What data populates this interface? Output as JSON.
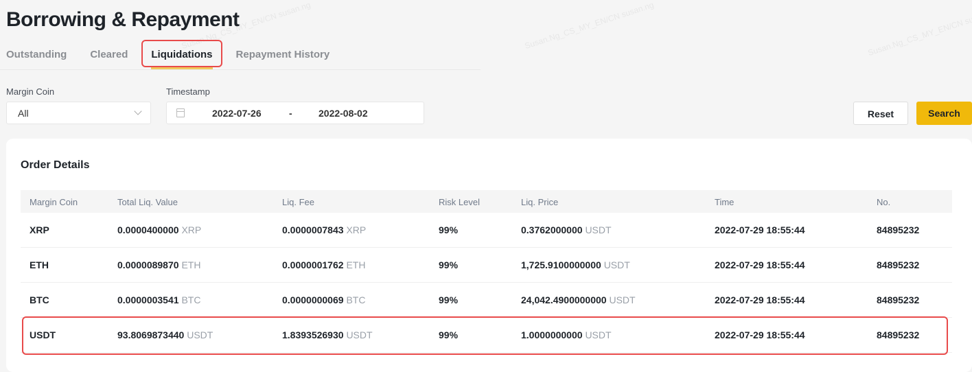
{
  "page": {
    "title": "Borrowing & Repayment"
  },
  "tabs": [
    {
      "label": "Outstanding"
    },
    {
      "label": "Cleared"
    },
    {
      "label": "Liquidations",
      "active": true
    },
    {
      "label": "Repayment History"
    }
  ],
  "filters": {
    "margin_coin_label": "Margin Coin",
    "margin_coin_value": "All",
    "timestamp_label": "Timestamp",
    "date_start": "2022-07-26",
    "date_sep": "-",
    "date_end": "2022-08-02",
    "reset": "Reset",
    "search": "Search"
  },
  "colors": {
    "accent": "#f0b90b",
    "highlight": "#e84a4a"
  },
  "watermark": "Susan.Ng_CS_MY_EN/CN susan.ng",
  "table": {
    "title": "Order Details",
    "headers": [
      "Margin Coin",
      "Total Liq. Value",
      "Liq. Fee",
      "Risk Level",
      "Liq. Price",
      "Time",
      "No."
    ],
    "rows": [
      {
        "coin": "XRP",
        "total": "0.0000400000",
        "total_unit": "XRP",
        "fee": "0.0000007843",
        "fee_unit": "XRP",
        "risk": "99%",
        "price": "0.3762000000",
        "price_unit": "USDT",
        "time": "2022-07-29 18:55:44",
        "no": "84895232"
      },
      {
        "coin": "ETH",
        "total": "0.0000089870",
        "total_unit": "ETH",
        "fee": "0.0000001762",
        "fee_unit": "ETH",
        "risk": "99%",
        "price": "1,725.9100000000",
        "price_unit": "USDT",
        "time": "2022-07-29 18:55:44",
        "no": "84895232"
      },
      {
        "coin": "BTC",
        "total": "0.0000003541",
        "total_unit": "BTC",
        "fee": "0.0000000069",
        "fee_unit": "BTC",
        "risk": "99%",
        "price": "24,042.4900000000",
        "price_unit": "USDT",
        "time": "2022-07-29 18:55:44",
        "no": "84895232"
      },
      {
        "coin": "USDT",
        "total": "93.8069873440",
        "total_unit": "USDT",
        "fee": "1.8393526930",
        "fee_unit": "USDT",
        "risk": "99%",
        "price": "1.0000000000",
        "price_unit": "USDT",
        "time": "2022-07-29 18:55:44",
        "no": "84895232"
      }
    ]
  }
}
